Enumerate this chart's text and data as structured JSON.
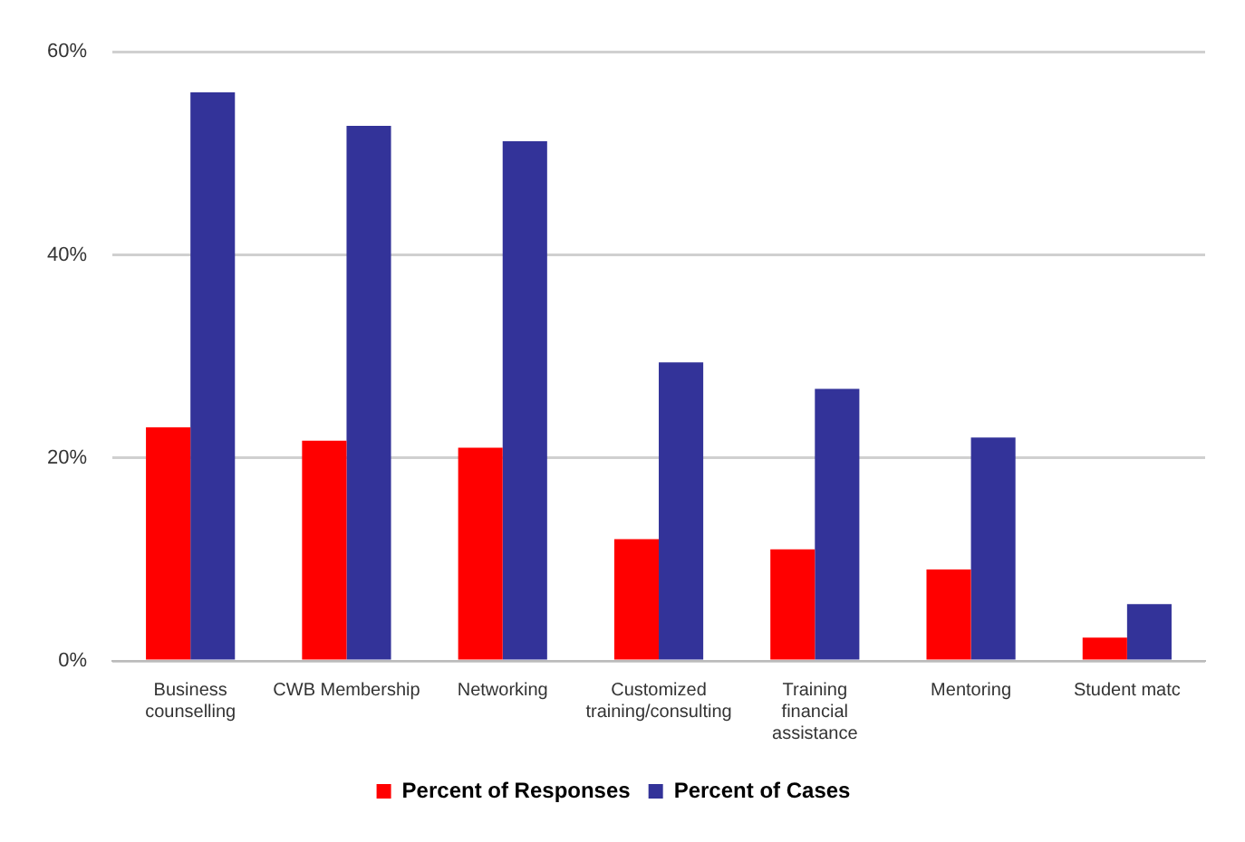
{
  "chart_data": {
    "type": "bar",
    "categories": [
      "Business counselling",
      "CWB Membership",
      "Networking",
      "Customized training/consulting",
      "Training financial assistance",
      "Mentoring",
      "Student matc"
    ],
    "series": [
      {
        "name": "Percent of Responses",
        "color": "#ff0000",
        "values": [
          23.0,
          21.7,
          21.0,
          12.0,
          11.0,
          9.0,
          2.3
        ]
      },
      {
        "name": "Percent of Cases",
        "color": "#333399",
        "values": [
          56.0,
          52.7,
          51.2,
          29.4,
          26.8,
          22.0,
          5.6
        ]
      }
    ],
    "ylim": [
      0,
      60
    ],
    "yticks": [
      {
        "value": 0,
        "label": "0%"
      },
      {
        "value": 20,
        "label": "20%"
      },
      {
        "value": 40,
        "label": "40%"
      },
      {
        "value": 60,
        "label": "60%"
      }
    ],
    "grid": "y",
    "legend": "bottom"
  }
}
